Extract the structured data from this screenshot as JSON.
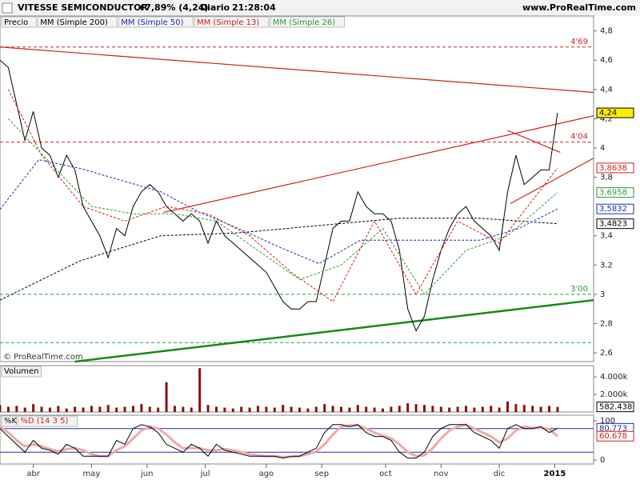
{
  "header": {
    "title": "VITESSE SEMICONDUCTOR",
    "change": "+7,89% (4,24)",
    "period": "Diario",
    "time": "21:28:04",
    "site": "www.ProRealTime.com",
    "watermark": "© ProRealTime.com"
  },
  "chart_data": [
    {
      "type": "line",
      "title": "Precio",
      "x": [
        0,
        3,
        6,
        9,
        12,
        15,
        18,
        21,
        24,
        27,
        30,
        33,
        36,
        39,
        42,
        45,
        48,
        51,
        54,
        57,
        60,
        63,
        66,
        69,
        72,
        75,
        78,
        81,
        84,
        87,
        90,
        93,
        96,
        99,
        102,
        105,
        108,
        111,
        114,
        117,
        120,
        123,
        126,
        129,
        132,
        135,
        138,
        141,
        144,
        147,
        150,
        153,
        156,
        159,
        162,
        165,
        168,
        171,
        174,
        177,
        180,
        183,
        186,
        189,
        192,
        195,
        198,
        201
      ],
      "xlim": [
        0,
        214
      ],
      "xticks": [
        {
          "value": 12,
          "label": "abr"
        },
        {
          "value": 33,
          "label": "may"
        },
        {
          "value": 53,
          "label": "jun"
        },
        {
          "value": 74,
          "label": "jul"
        },
        {
          "value": 96,
          "label": "ago"
        },
        {
          "value": 116,
          "label": "sep"
        },
        {
          "value": 139,
          "label": "oct"
        },
        {
          "value": 159,
          "label": "nov"
        },
        {
          "value": 180,
          "label": "dic"
        },
        {
          "value": 200,
          "label": "2015"
        }
      ],
      "ylim": [
        2.54,
        4.82
      ],
      "yticks": [
        {
          "value": 4.8,
          "label": "4,8"
        },
        {
          "value": 4.6,
          "label": "4,6"
        },
        {
          "value": 4.4,
          "label": "4,4"
        },
        {
          "value": 4.2,
          "label": "4,2"
        },
        4,
        {
          "value": 3.8,
          "label": "3,8"
        },
        {
          "value": 3.4,
          "label": "3,4"
        },
        {
          "value": 3.2,
          "label": "3,2"
        },
        3,
        {
          "value": 2.8,
          "label": "2,8"
        },
        {
          "value": 2.6,
          "label": "2,6"
        }
      ],
      "series": [
        {
          "name": "Precio",
          "color": "#000000",
          "values": [
            4.6,
            4.55,
            4.3,
            4.05,
            4.25,
            4.0,
            3.95,
            3.8,
            3.95,
            3.85,
            3.6,
            3.5,
            3.4,
            3.25,
            3.45,
            3.4,
            3.6,
            3.7,
            3.75,
            3.7,
            3.6,
            3.55,
            3.5,
            3.55,
            3.5,
            3.35,
            3.5,
            3.4,
            3.35,
            3.3,
            3.25,
            3.2,
            3.15,
            3.05,
            2.95,
            2.9,
            2.9,
            2.95,
            2.95,
            3.2,
            3.45,
            3.5,
            3.5,
            3.7,
            3.6,
            3.55,
            3.55,
            3.5,
            3.3,
            2.9,
            2.75,
            2.85,
            3.1,
            3.3,
            3.45,
            3.55,
            3.6,
            3.5,
            3.45,
            3.4,
            3.3,
            3.7,
            3.95,
            3.75,
            3.8,
            3.85,
            3.85,
            4.24
          ]
        },
        {
          "name": "MM (Simple 200)",
          "color": "#000000",
          "dashed": true,
          "x": [
            0,
            29,
            58,
            86,
            115,
            144,
            173,
            201
          ],
          "values": [
            2.96,
            3.23,
            3.4,
            3.42,
            3.47,
            3.52,
            3.52,
            3.4823
          ]
        },
        {
          "name": "MM (Simple 50)",
          "color": "#1f2fb0",
          "dashed": true,
          "x": [
            0,
            14,
            29,
            58,
            72,
            86,
            101,
            115,
            130,
            144,
            159,
            173,
            187,
            201
          ],
          "values": [
            3.58,
            3.92,
            3.86,
            3.7,
            3.56,
            3.45,
            3.32,
            3.21,
            3.37,
            3.37,
            3.37,
            3.37,
            3.45,
            3.5832
          ]
        },
        {
          "name": "MM (Simple 13)",
          "color": "#d02020",
          "dashed": true,
          "x": [
            3,
            15,
            30,
            45,
            60,
            75,
            90,
            105,
            120,
            135,
            150,
            165,
            180,
            201
          ],
          "values": [
            4.4,
            3.95,
            3.6,
            3.5,
            3.6,
            3.55,
            3.4,
            3.15,
            2.95,
            3.5,
            3.0,
            3.5,
            3.35,
            3.8638
          ]
        },
        {
          "name": "MM (Simple 26)",
          "color": "#2a9a3a",
          "dashed": true,
          "x": [
            3,
            18,
            33,
            48,
            63,
            78,
            93,
            108,
            123,
            138,
            153,
            168,
            183,
            201
          ],
          "values": [
            4.2,
            3.9,
            3.6,
            3.55,
            3.55,
            3.5,
            3.3,
            3.1,
            3.2,
            3.45,
            3.0,
            3.3,
            3.4,
            3.6958
          ]
        }
      ],
      "hlines": [
        {
          "value": 4.69,
          "label": "4'69",
          "color": "#d02020"
        },
        {
          "value": 4.04,
          "label": "4'04",
          "color": "#d02020"
        },
        {
          "value": 3.0,
          "label": "3'00",
          "color": "#2a9a3a"
        },
        {
          "value": 2.67,
          "color": "#2a9a3a"
        }
      ],
      "trendlines": [
        {
          "x": [
            0,
            214
          ],
          "y": [
            4.69,
            4.38
          ],
          "color": "#d02020"
        },
        {
          "x": [
            59,
            214
          ],
          "y": [
            3.56,
            4.22
          ],
          "color": "#d02020"
        },
        {
          "x": [
            184,
            214
          ],
          "y": [
            3.62,
            3.93
          ],
          "color": "#d02020"
        },
        {
          "x": [
            183,
            202
          ],
          "y": [
            4.12,
            3.97
          ],
          "color": "#d02020"
        },
        {
          "x": [
            27,
            214
          ],
          "y": [
            2.54,
            2.96
          ],
          "color": "#168a16"
        }
      ],
      "last_labels": [
        {
          "value": 4.24,
          "label": "4,24",
          "color": "#000000",
          "fill": "#ffee00"
        },
        {
          "value": 3.8638,
          "label": "3,8638",
          "color": "#d02020"
        },
        {
          "value": 3.6958,
          "label": "3,6958",
          "color": "#2a9a3a"
        },
        {
          "value": 3.5832,
          "label": "3,5832",
          "color": "#1f2fb0"
        },
        {
          "value": 3.4823,
          "label": "3,4823",
          "color": "#000000"
        }
      ]
    },
    {
      "type": "bar",
      "title": "Volumen",
      "x": [
        0,
        3,
        6,
        9,
        12,
        15,
        18,
        21,
        24,
        27,
        30,
        33,
        36,
        39,
        42,
        45,
        48,
        51,
        54,
        57,
        60,
        63,
        66,
        69,
        72,
        75,
        78,
        81,
        84,
        87,
        90,
        93,
        96,
        99,
        102,
        105,
        108,
        111,
        114,
        117,
        120,
        123,
        126,
        129,
        132,
        135,
        138,
        141,
        144,
        147,
        150,
        153,
        156,
        159,
        162,
        165,
        168,
        171,
        174,
        177,
        180,
        183,
        186,
        189,
        192,
        195,
        198,
        201
      ],
      "color": "#8b1010",
      "ylim": [
        0,
        5200000
      ],
      "yticks": [
        {
          "value": 4000000,
          "label": "4.000k"
        },
        {
          "value": 2000000,
          "label": "2.000k"
        }
      ],
      "values": [
        800000,
        600000,
        700000,
        500000,
        900000,
        600000,
        500000,
        700000,
        400000,
        600000,
        500000,
        700000,
        600000,
        800000,
        500000,
        600000,
        700000,
        900000,
        600000,
        500000,
        3400000,
        700000,
        600000,
        500000,
        5000000,
        800000,
        600000,
        500000,
        400000,
        600000,
        500000,
        700000,
        600000,
        500000,
        800000,
        600000,
        500000,
        400000,
        600000,
        900000,
        700000,
        600000,
        500000,
        800000,
        600000,
        500000,
        400000,
        600000,
        700000,
        1000000,
        900000,
        800000,
        700000,
        600000,
        500000,
        600000,
        700000,
        500000,
        600000,
        700000,
        500000,
        1200000,
        900000,
        800000,
        700000,
        600000,
        700000,
        582438
      ],
      "last_labels": [
        {
          "value": 582438,
          "label": "582.438",
          "color": "#000000"
        }
      ]
    },
    {
      "type": "line",
      "title": "%K",
      "x": [
        0,
        3,
        6,
        9,
        12,
        15,
        18,
        21,
        24,
        27,
        30,
        33,
        36,
        39,
        42,
        45,
        48,
        51,
        54,
        57,
        60,
        63,
        66,
        69,
        72,
        75,
        78,
        81,
        84,
        87,
        90,
        93,
        96,
        99,
        102,
        105,
        108,
        111,
        114,
        117,
        120,
        123,
        126,
        129,
        132,
        135,
        138,
        141,
        144,
        147,
        150,
        153,
        156,
        159,
        162,
        165,
        168,
        171,
        174,
        177,
        180,
        183,
        186,
        189,
        192,
        195,
        198,
        201
      ],
      "ylim": [
        -10,
        112
      ],
      "yticks": [
        100,
        0
      ],
      "levels": [
        20,
        80
      ],
      "series": [
        {
          "name": "%D (14 3 5)",
          "color": "#f0a8a8",
          "values": [
            85,
            70,
            50,
            35,
            40,
            35,
            28,
            22,
            28,
            30,
            25,
            15,
            10,
            10,
            25,
            35,
            55,
            75,
            85,
            80,
            65,
            45,
            30,
            30,
            30,
            25,
            25,
            28,
            25,
            20,
            15,
            12,
            10,
            10,
            8,
            8,
            10,
            15,
            22,
            40,
            65,
            85,
            88,
            88,
            80,
            70,
            62,
            55,
            40,
            20,
            10,
            12,
            30,
            55,
            75,
            85,
            90,
            80,
            70,
            60,
            45,
            55,
            75,
            85,
            82,
            82,
            78,
            60.678
          ]
        },
        {
          "name": "%K",
          "color": "#000000",
          "values": [
            80,
            60,
            40,
            20,
            50,
            30,
            25,
            15,
            40,
            30,
            10,
            10,
            10,
            10,
            50,
            40,
            80,
            90,
            85,
            70,
            40,
            30,
            20,
            40,
            30,
            10,
            40,
            25,
            20,
            15,
            10,
            10,
            10,
            10,
            5,
            10,
            10,
            20,
            30,
            70,
            90,
            90,
            85,
            90,
            70,
            60,
            60,
            50,
            20,
            5,
            5,
            20,
            60,
            80,
            90,
            90,
            90,
            70,
            60,
            50,
            30,
            80,
            90,
            80,
            80,
            85,
            70,
            80.773
          ]
        }
      ],
      "last_labels": [
        {
          "value": 80.773,
          "label": "80,773",
          "color": "#1f2fb0"
        },
        {
          "value": 60.678,
          "label": "60,678",
          "color": "#d02020"
        }
      ]
    }
  ]
}
